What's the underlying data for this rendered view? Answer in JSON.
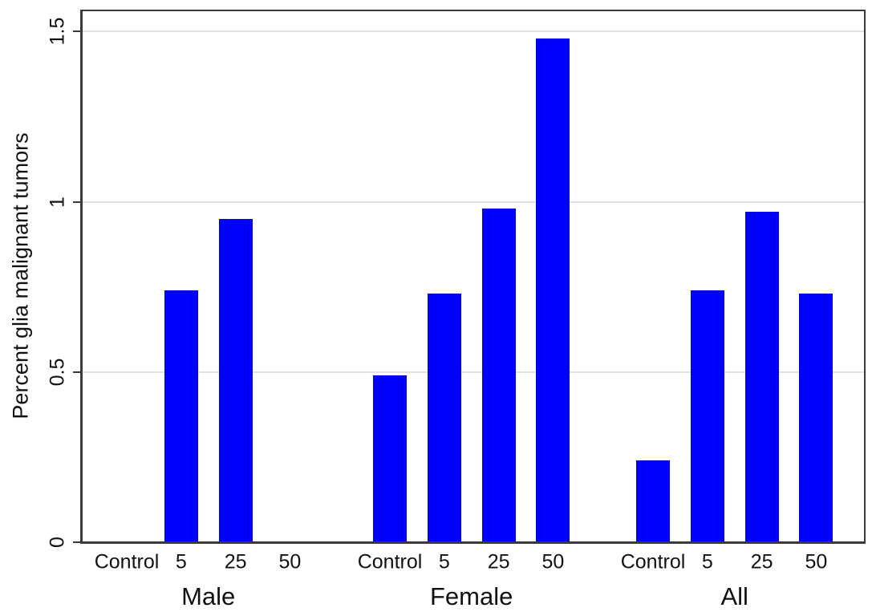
{
  "chart_data": {
    "type": "bar",
    "title": "",
    "xlabel": "",
    "ylabel": "Percent glia malignant tumors",
    "ylim": [
      0,
      1.565
    ],
    "yticks": [
      0,
      0.5,
      1,
      1.5
    ],
    "ytick_labels": [
      "0",
      "0.5",
      "1",
      "1.5"
    ],
    "grid": true,
    "legend": null,
    "bar_color": "#0000fe",
    "axis_color": "#3a3a3a",
    "grid_color": "#e2e2e2",
    "groups": [
      {
        "label": "Male",
        "categories": [
          "Control",
          "5",
          "25",
          "50"
        ],
        "values": [
          0,
          0.74,
          0.95,
          0
        ]
      },
      {
        "label": "Female",
        "categories": [
          "Control",
          "5",
          "25",
          "50"
        ],
        "values": [
          0.49,
          0.73,
          0.98,
          1.48
        ]
      },
      {
        "label": "All",
        "categories": [
          "Control",
          "5",
          "25",
          "50"
        ],
        "values": [
          0.24,
          0.74,
          0.97,
          0.73
        ]
      }
    ]
  }
}
